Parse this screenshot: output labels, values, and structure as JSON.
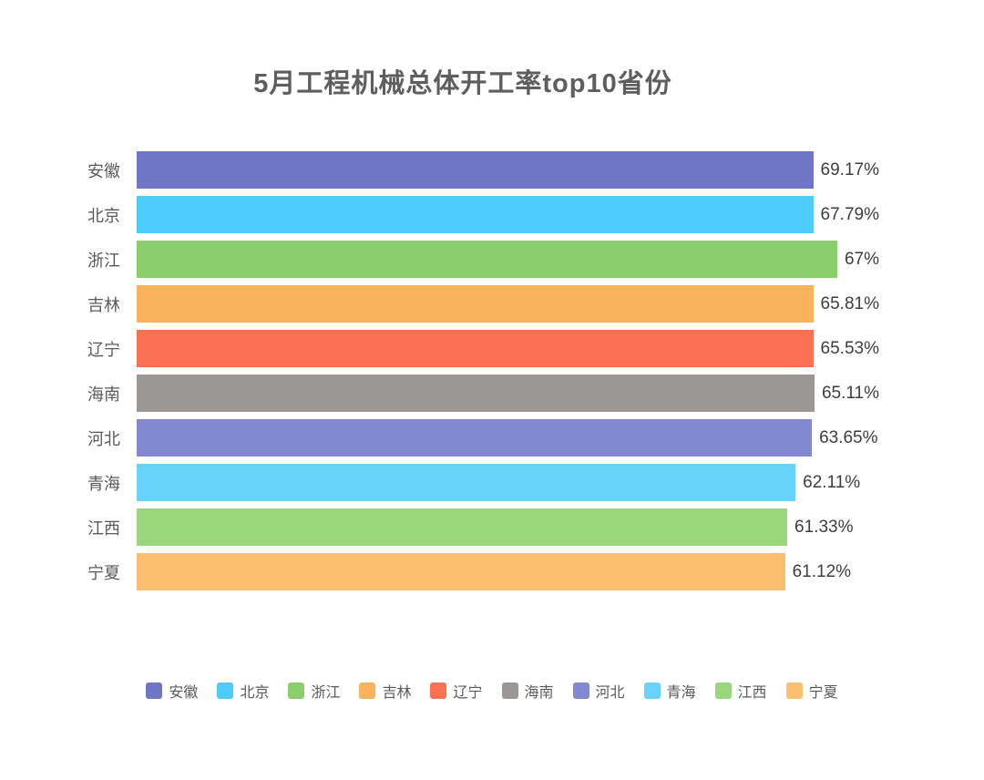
{
  "chart_data": {
    "type": "bar",
    "orientation": "horizontal",
    "title": "5月工程机械总体开工率top10省份",
    "categories": [
      "安徽",
      "北京",
      "浙江",
      "吉林",
      "辽宁",
      "海南",
      "河北",
      "青海",
      "江西",
      "宁夏"
    ],
    "values": [
      69.17,
      67.79,
      67,
      65.81,
      65.53,
      65.11,
      63.65,
      62.11,
      61.33,
      61.12
    ],
    "value_labels": [
      "69.17%",
      "67.79%",
      "67%",
      "65.81%",
      "65.53%",
      "65.11%",
      "63.65%",
      "62.11%",
      "61.33%",
      "61.12%"
    ],
    "colors": [
      "#6f76c5",
      "#4dcbfa",
      "#8bce6c",
      "#fbb25c",
      "#fa7053",
      "#9b9794",
      "#8289d1",
      "#67d2fa",
      "#9ad67c",
      "#fdbe70"
    ],
    "xlim": [
      0,
      70
    ],
    "grid": false,
    "axes_visible": false,
    "legend_position": "bottom",
    "legend": [
      {
        "label": "安徽",
        "color": "#6f76c5"
      },
      {
        "label": "北京",
        "color": "#4dcbfa"
      },
      {
        "label": "浙江",
        "color": "#8bce6c"
      },
      {
        "label": "吉林",
        "color": "#fbb25c"
      },
      {
        "label": "辽宁",
        "color": "#fa7053"
      },
      {
        "label": "海南",
        "color": "#9b9794"
      },
      {
        "label": "河北",
        "color": "#8289d1"
      },
      {
        "label": "青海",
        "color": "#67d2fa"
      },
      {
        "label": "江西",
        "color": "#9ad67c"
      },
      {
        "label": "宁夏",
        "color": "#fdbe70"
      }
    ],
    "title_color": "#5e5e5e",
    "label_color": "#595959",
    "value_color": "#3e3e3e"
  }
}
